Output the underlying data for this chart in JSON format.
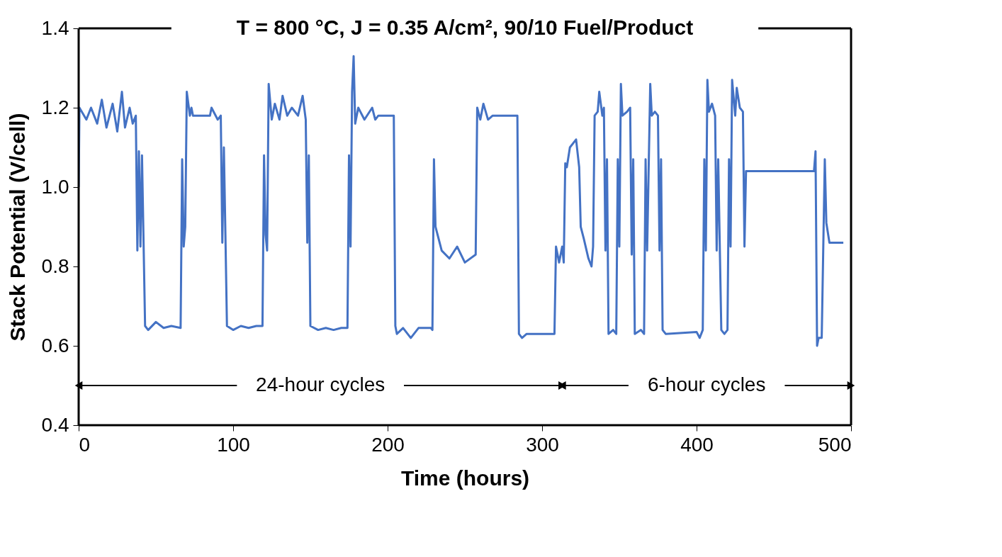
{
  "chart_data": {
    "type": "line",
    "title": "T = 800 °C, J = 0.35 A/cm², 90/10 Fuel/Product",
    "xlabel": "Time (hours)",
    "ylabel": "Stack Potential (V/cell)",
    "xlim": [
      0,
      500
    ],
    "xticks": [
      0,
      100,
      200,
      300,
      400,
      500
    ],
    "ylim": [
      0.4,
      1.4
    ],
    "yticks": [
      0.4,
      0.6,
      0.8,
      {
        "value": 1.0,
        "label": "1.0"
      },
      1.2,
      1.4
    ],
    "grid": false,
    "legend": false,
    "marker": "none",
    "line_style": "solid",
    "annotations": [
      "24-hour cycles",
      "6-hour cycles"
    ],
    "series": [
      {
        "color": "#4472c4",
        "x": [
          0,
          0.5,
          5,
          8,
          12,
          15,
          18,
          22,
          25,
          28,
          30,
          33,
          35,
          37,
          38,
          39,
          40,
          41,
          43,
          45,
          50,
          55,
          60,
          66,
          67,
          68,
          69,
          70,
          72,
          73,
          74,
          85,
          86,
          90,
          92,
          93,
          94,
          95,
          96,
          100,
          105,
          110,
          115,
          119,
          120,
          121,
          122,
          123,
          125,
          127,
          130,
          132,
          135,
          138,
          142,
          145,
          147,
          148,
          149,
          150,
          155,
          160,
          165,
          170,
          174,
          175,
          176,
          177,
          178,
          179,
          181,
          185,
          190,
          192,
          194,
          204,
          205,
          206,
          210,
          215,
          220,
          228,
          229,
          230,
          231,
          235,
          240,
          245,
          250,
          257,
          258,
          260,
          262,
          265,
          268,
          284,
          285,
          287,
          290,
          308,
          309,
          311,
          313,
          314,
          315,
          316,
          318,
          322,
          324,
          325,
          327,
          330,
          332,
          333,
          334,
          336,
          337,
          339,
          340,
          341,
          342,
          343,
          346,
          348,
          349,
          350,
          351,
          352,
          355,
          357,
          358,
          359,
          360,
          364,
          366,
          367,
          368,
          370,
          371,
          373,
          375,
          376,
          377,
          378,
          380,
          400,
          402,
          404,
          405,
          406,
          407,
          408,
          410,
          412,
          413,
          414,
          416,
          418,
          420,
          421,
          422,
          423,
          425,
          426,
          428,
          430,
          431,
          432,
          476,
          477,
          478,
          479,
          481,
          483,
          484,
          486,
          495
        ],
        "values": [
          1.0,
          1.2,
          1.17,
          1.2,
          1.16,
          1.22,
          1.15,
          1.21,
          1.14,
          1.24,
          1.15,
          1.2,
          1.16,
          1.18,
          0.84,
          1.09,
          0.85,
          1.08,
          0.65,
          0.64,
          0.66,
          0.645,
          0.65,
          0.645,
          1.07,
          0.85,
          0.9,
          1.24,
          1.18,
          1.2,
          1.18,
          1.18,
          1.2,
          1.17,
          1.18,
          0.86,
          1.1,
          0.88,
          0.65,
          0.64,
          0.65,
          0.645,
          0.65,
          0.65,
          1.08,
          0.88,
          0.84,
          1.26,
          1.17,
          1.21,
          1.17,
          1.23,
          1.18,
          1.2,
          1.18,
          1.23,
          1.17,
          0.86,
          1.08,
          0.65,
          0.64,
          0.645,
          0.64,
          0.645,
          0.645,
          1.08,
          0.85,
          1.24,
          1.33,
          1.16,
          1.2,
          1.17,
          1.2,
          1.17,
          1.18,
          1.18,
          0.65,
          0.63,
          0.645,
          0.62,
          0.645,
          0.645,
          0.64,
          1.07,
          0.9,
          0.84,
          0.82,
          0.85,
          0.81,
          0.83,
          1.2,
          1.17,
          1.21,
          1.17,
          1.18,
          1.18,
          0.63,
          0.62,
          0.63,
          0.63,
          0.85,
          0.81,
          0.85,
          0.81,
          1.06,
          1.05,
          1.1,
          1.12,
          1.05,
          0.9,
          0.87,
          0.82,
          0.8,
          0.85,
          1.18,
          1.19,
          1.24,
          1.18,
          1.2,
          0.84,
          1.07,
          0.63,
          0.64,
          0.63,
          1.07,
          0.85,
          1.26,
          1.18,
          1.19,
          1.2,
          0.83,
          1.07,
          0.63,
          0.64,
          0.63,
          1.07,
          0.84,
          1.26,
          1.18,
          1.19,
          1.18,
          0.84,
          1.07,
          0.64,
          0.63,
          0.635,
          0.62,
          0.64,
          1.07,
          0.84,
          1.27,
          1.19,
          1.21,
          1.18,
          0.84,
          1.07,
          0.64,
          0.63,
          0.64,
          1.07,
          0.85,
          1.27,
          1.18,
          1.25,
          1.2,
          1.19,
          0.85,
          1.04,
          1.04,
          1.09,
          0.6,
          0.62,
          0.62,
          1.07,
          0.91,
          0.86,
          0.86
        ]
      }
    ]
  }
}
